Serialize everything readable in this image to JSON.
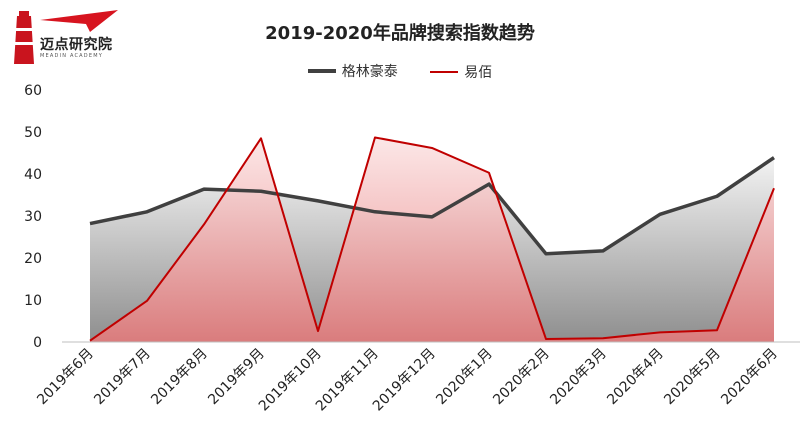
{
  "logo": {
    "name": "迈点研究院",
    "sub": "MEADIN ACADEMY"
  },
  "chart_data": {
    "type": "area",
    "title": "2019-2020年品牌搜索指数趋势",
    "xlabel": "",
    "ylabel": "",
    "categories": [
      "2019年6月",
      "2019年7月",
      "2019年8月",
      "2019年9月",
      "2019年10月",
      "2019年11月",
      "2019年12月",
      "2020年1月",
      "2020年2月",
      "2020年3月",
      "2020年4月",
      "2020年5月",
      "2020年6月"
    ],
    "ylim": [
      0,
      60
    ],
    "yticks": [
      "0",
      "10",
      "20",
      "30",
      "40",
      "50",
      "60"
    ],
    "legend_position": "top",
    "series": [
      {
        "name": "格林豪泰",
        "color": "#404040",
        "values": [
          28.2,
          31.0,
          36.4,
          35.9,
          33.6,
          31.0,
          29.8,
          37.6,
          21.0,
          21.7,
          30.4,
          34.7,
          43.9
        ]
      },
      {
        "name": "易佰",
        "color": "#c00000",
        "values": [
          0.3,
          9.8,
          28.0,
          48.5,
          2.6,
          48.7,
          46.2,
          40.3,
          0.7,
          0.9,
          2.3,
          2.8,
          36.6
        ]
      }
    ]
  }
}
